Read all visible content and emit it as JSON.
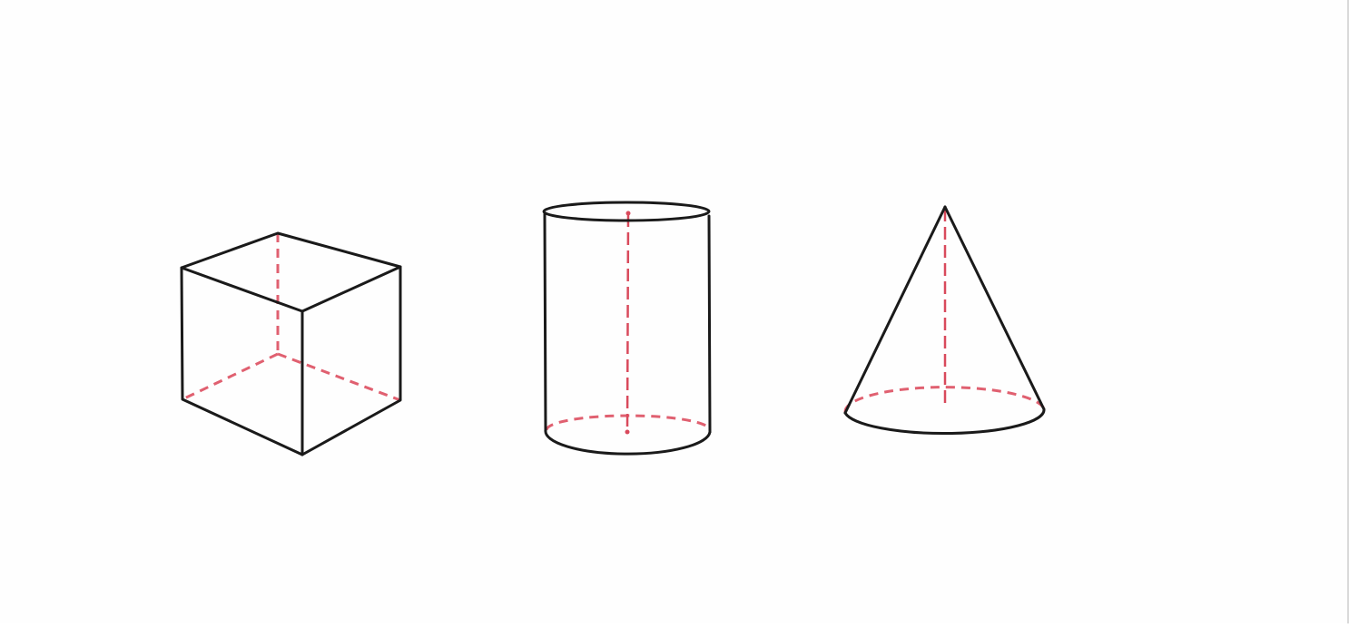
{
  "diagram": {
    "shapes": [
      {
        "kind": "cube",
        "icon": "cube-icon"
      },
      {
        "kind": "cylinder",
        "icon": "cylinder-icon"
      },
      {
        "kind": "cone",
        "icon": "cone-icon"
      }
    ],
    "colors": {
      "background": "#fefefe",
      "edge": "#1a1a1a",
      "hidden_edge": "#e06070",
      "axis": "#d94a5c"
    }
  }
}
